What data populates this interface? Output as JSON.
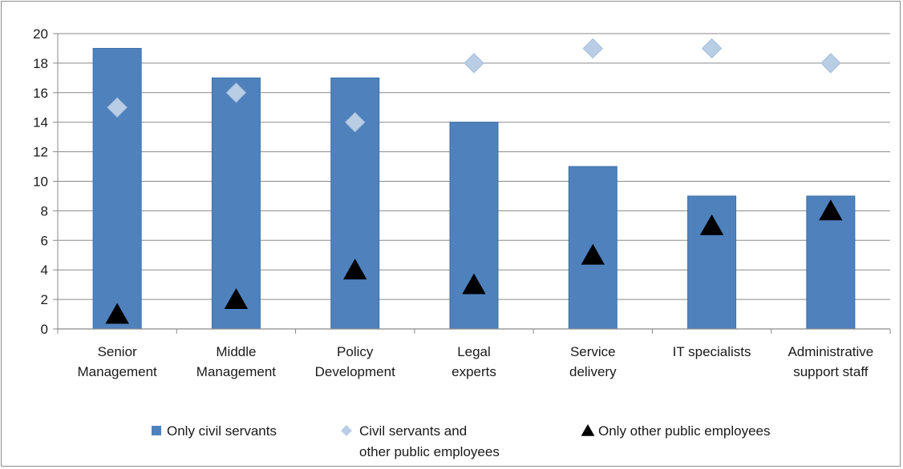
{
  "chart_data": {
    "type": "bar",
    "categories": [
      [
        "Senior",
        "Management"
      ],
      [
        "Middle",
        "Management"
      ],
      [
        "Policy",
        "Development"
      ],
      [
        "Legal",
        "experts"
      ],
      [
        "Service",
        "delivery"
      ],
      [
        "IT specialists"
      ],
      [
        "Administrative",
        "support staff"
      ]
    ],
    "series": [
      {
        "name": "Only civil servants",
        "kind": "bar",
        "marker": "square",
        "color": "#4f81bd",
        "values": [
          19,
          17,
          17,
          14,
          11,
          9,
          9
        ]
      },
      {
        "name_lines": [
          "Civil servants and",
          "other public employees"
        ],
        "kind": "marker",
        "marker": "diamond",
        "color": "#b9cde5",
        "values": [
          15,
          16,
          14,
          18,
          19,
          19,
          18
        ]
      },
      {
        "name": "Only other public employees",
        "kind": "marker",
        "marker": "triangle",
        "color": "#000000",
        "values": [
          1,
          2,
          4,
          3,
          5,
          7,
          8
        ]
      }
    ],
    "title": "",
    "xlabel": "",
    "ylabel": "",
    "ylim": [
      0,
      20
    ],
    "yticks": [
      0,
      2,
      4,
      6,
      8,
      10,
      12,
      14,
      16,
      18,
      20
    ],
    "grid": true,
    "legend_position": "bottom"
  }
}
